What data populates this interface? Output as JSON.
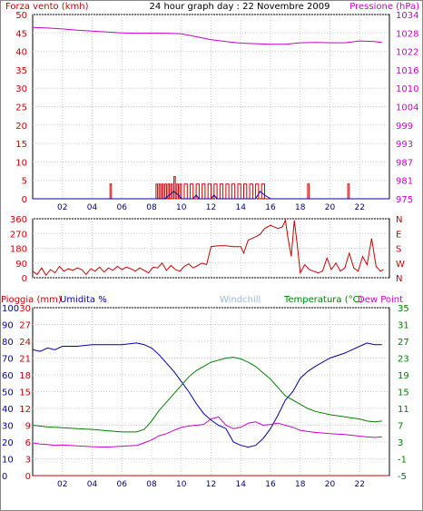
{
  "header": {
    "title": "24 hour graph day : 22 Novembre 2009",
    "left_label": "Forza vento (kmh)",
    "right_label": "Pressione (hPa)"
  },
  "colors": {
    "red": "#cc0000",
    "magenta": "#cc00cc",
    "blue": "#0000aa",
    "green": "#008000",
    "lightblue": "#9ab9d9",
    "navy": "#000080"
  },
  "chart_data": [
    {
      "type": "line",
      "name": "wind-pressure",
      "ylabel_left": "Forza vento (kmh)",
      "ylabel_right": "Pressione (hPa)",
      "yticks_left": [
        "0",
        "5",
        "10",
        "15",
        "20",
        "25",
        "30",
        "35",
        "40",
        "45",
        "50"
      ],
      "yticks_right": [
        "975",
        "981",
        "987",
        "993",
        "999",
        "1004",
        "1010",
        "1016",
        "1022",
        "1028",
        "1034"
      ],
      "ylim_left": [
        0,
        50
      ],
      "xlim": [
        0,
        24
      ],
      "xticks": [
        "02",
        "04",
        "06",
        "08",
        "10",
        "12",
        "14",
        "16",
        "18",
        "20",
        "22"
      ],
      "series": [
        {
          "role": "pressure",
          "axis": "right",
          "x": [
            0,
            1,
            2,
            3,
            4,
            5,
            6,
            7,
            8,
            9,
            10,
            11,
            12,
            13,
            14,
            15,
            16,
            17,
            18,
            19,
            20,
            21,
            22,
            23,
            23.5
          ],
          "y": [
            1029.8,
            1029.6,
            1029.3,
            1028.9,
            1028.6,
            1028.3,
            1028.0,
            1027.9,
            1027.9,
            1027.9,
            1027.7,
            1026.8,
            1025.8,
            1025.2,
            1024.7,
            1024.5,
            1024.3,
            1024.3,
            1024.8,
            1024.9,
            1024.8,
            1024.8,
            1025.4,
            1025.2,
            1024.9
          ]
        },
        {
          "role": "wind-max",
          "axis": "left",
          "x": [
            5.2,
            5.3,
            8.3,
            8.4,
            8.5,
            8.6,
            8.7,
            8.8,
            8.9,
            9.0,
            9.1,
            9.2,
            9.3,
            9.4,
            9.5,
            9.6,
            9.7,
            9.8,
            9.9,
            10.0,
            10.2,
            10.4,
            10.6,
            10.8,
            11.0,
            11.2,
            11.4,
            11.6,
            11.8,
            12.0,
            12.2,
            12.4,
            12.6,
            12.8,
            13.0,
            13.2,
            13.4,
            13.6,
            13.8,
            14.0,
            14.2,
            14.4,
            14.6,
            14.8,
            15.0,
            15.2,
            15.4,
            15.6,
            18.5,
            18.6,
            21.2,
            21.3
          ],
          "y": [
            4,
            0,
            4,
            0,
            4,
            0,
            4,
            0,
            4,
            0,
            4,
            0,
            4,
            0,
            6,
            0,
            4,
            0,
            4,
            0,
            4,
            0,
            4,
            0,
            4,
            0,
            4,
            0,
            4,
            0,
            4,
            0,
            4,
            0,
            4,
            0,
            4,
            0,
            4,
            0,
            4,
            0,
            4,
            0,
            4,
            0,
            4,
            0,
            4,
            0,
            4,
            0
          ]
        },
        {
          "role": "wind-avg",
          "axis": "left",
          "x": [
            0,
            8.9,
            9.2,
            9.5,
            9.8,
            10.0,
            10.8,
            11.0,
            11.2,
            12.0,
            12.2,
            12.4,
            15.0,
            15.3,
            15.6,
            16.0,
            24
          ],
          "y": [
            0,
            0,
            1,
            2,
            1,
            0,
            0,
            1,
            0,
            0,
            1,
            0,
            0,
            2,
            1,
            0,
            0
          ]
        }
      ]
    },
    {
      "type": "line",
      "name": "wind-direction",
      "ylim": [
        0,
        360
      ],
      "yticks_left": [
        "0",
        "90",
        "180",
        "270",
        "360"
      ],
      "yticks_right": [
        "N",
        "W",
        "S",
        "E",
        "N"
      ],
      "xlim": [
        0,
        24
      ],
      "series": [
        {
          "role": "direction",
          "x": [
            0,
            0.3,
            0.6,
            0.9,
            1.2,
            1.5,
            1.8,
            2.1,
            2.4,
            2.7,
            3.0,
            3.3,
            3.6,
            3.9,
            4.2,
            4.5,
            4.8,
            5.1,
            5.4,
            5.7,
            6.0,
            6.3,
            6.6,
            6.9,
            7.2,
            7.5,
            7.8,
            8.1,
            8.4,
            8.7,
            9.0,
            9.3,
            9.6,
            9.9,
            10.2,
            10.5,
            10.8,
            11.1,
            11.4,
            11.7,
            12.0,
            12.5,
            13.0,
            13.5,
            14.0,
            14.2,
            14.5,
            15.0,
            15.3,
            15.6,
            16.0,
            16.5,
            16.8,
            17.0,
            17.2,
            17.4,
            17.6,
            17.8,
            18.0,
            18.3,
            18.6,
            18.9,
            19.2,
            19.5,
            19.8,
            20.1,
            20.4,
            20.7,
            21.0,
            21.3,
            21.6,
            21.9,
            22.2,
            22.5,
            22.8,
            23.1,
            23.4,
            23.6
          ],
          "y": [
            40,
            20,
            60,
            15,
            50,
            30,
            70,
            40,
            55,
            45,
            60,
            50,
            20,
            55,
            40,
            65,
            35,
            60,
            45,
            70,
            50,
            65,
            55,
            40,
            60,
            45,
            30,
            65,
            60,
            90,
            45,
            75,
            50,
            40,
            70,
            85,
            60,
            75,
            90,
            80,
            190,
            195,
            195,
            190,
            190,
            150,
            230,
            250,
            265,
            300,
            320,
            300,
            310,
            350,
            230,
            130,
            350,
            200,
            30,
            80,
            50,
            40,
            30,
            40,
            120,
            50,
            90,
            40,
            60,
            150,
            60,
            40,
            130,
            80,
            240,
            70,
            40,
            50
          ]
        }
      ]
    },
    {
      "type": "line",
      "name": "rain-humidity-temperature",
      "labels": {
        "rain": "Pioggia (mm)",
        "humidity": "Umidita %",
        "windchill": "Windchill",
        "temperature": "Temperatura (°C)",
        "dewpoint": "Dew Point"
      },
      "yticks_left_rain": [
        "0",
        "3",
        "6",
        "9",
        "12",
        "15",
        "18",
        "21",
        "24",
        "27",
        "30"
      ],
      "yticks_left_humidity": [
        "0",
        "10",
        "20",
        "30",
        "40",
        "50",
        "60",
        "70",
        "80",
        "90",
        "100"
      ],
      "yticks_right": [
        "-5",
        "-1",
        "3",
        "7",
        "11",
        "15",
        "19",
        "23",
        "27",
        "31",
        "35"
      ],
      "ylim_right": [
        -5,
        35
      ],
      "xlim": [
        0,
        24
      ],
      "series": [
        {
          "role": "humidity",
          "x": [
            0,
            0.5,
            1,
            1.5,
            2,
            3,
            4,
            5,
            6,
            7,
            7.5,
            8,
            8.5,
            9,
            9.5,
            10,
            10.5,
            11,
            11.5,
            12,
            12.5,
            13,
            13.5,
            14,
            14.5,
            15,
            15.5,
            16,
            16.5,
            17,
            17.5,
            18,
            18.5,
            19,
            20,
            21,
            22,
            22.5,
            23,
            23.5
          ],
          "y": [
            75,
            74,
            76,
            75,
            77,
            77,
            78,
            78,
            78,
            79,
            78,
            76,
            72,
            67,
            62,
            56,
            50,
            43,
            37,
            33,
            30,
            28,
            20,
            18,
            17,
            18,
            22,
            28,
            36,
            45,
            50,
            58,
            62,
            65,
            70,
            73,
            77,
            79,
            78,
            78
          ]
        },
        {
          "role": "temperature",
          "x": [
            0,
            0.5,
            1,
            1.5,
            2,
            3,
            4,
            5,
            6,
            7,
            7.5,
            8,
            8.5,
            9,
            9.5,
            10,
            10.5,
            11,
            11.5,
            12,
            12.5,
            13,
            13.5,
            14,
            14.5,
            15,
            15.5,
            16,
            16.5,
            17,
            17.5,
            18,
            18.5,
            19,
            20,
            21,
            22,
            22.5,
            23,
            23.5
          ],
          "y": [
            7.0,
            6.8,
            6.6,
            6.5,
            6.4,
            6.2,
            6.0,
            5.7,
            5.4,
            5.4,
            6.0,
            8.0,
            10.5,
            12.5,
            14.5,
            16.5,
            18.5,
            20.0,
            21.0,
            22.0,
            22.5,
            23.0,
            23.2,
            22.8,
            22.0,
            21.0,
            19.5,
            18.0,
            16.0,
            14.0,
            13.0,
            12.0,
            11.0,
            10.3,
            9.5,
            9.0,
            8.5,
            8.0,
            7.8,
            8.0
          ]
        },
        {
          "role": "dewpoint",
          "x": [
            0,
            0.5,
            1,
            1.5,
            2,
            3,
            4,
            5,
            6,
            7,
            7.5,
            8,
            8.5,
            9,
            9.5,
            10,
            10.5,
            11,
            11.5,
            12,
            12.5,
            13,
            13.5,
            14,
            14.5,
            15,
            15.5,
            16,
            16.5,
            17,
            17.5,
            18,
            18.5,
            19,
            20,
            21,
            22,
            22.5,
            23,
            23.5
          ],
          "y": [
            2.8,
            2.5,
            2.4,
            2.2,
            2.3,
            2.1,
            1.9,
            1.8,
            2.0,
            2.2,
            2.8,
            3.5,
            4.5,
            5.0,
            5.8,
            6.5,
            6.8,
            7.0,
            7.2,
            8.5,
            9.0,
            7.0,
            6.2,
            6.5,
            7.5,
            7.8,
            7.0,
            7.2,
            7.5,
            7.0,
            6.5,
            5.8,
            5.5,
            5.3,
            5.0,
            4.8,
            4.4,
            4.2,
            4.1,
            4.2
          ]
        },
        {
          "role": "windchill",
          "x": [
            0,
            24
          ],
          "y": [
            6.5,
            6.5
          ]
        },
        {
          "role": "rain",
          "x": [
            0,
            24
          ],
          "y": [
            0,
            0
          ]
        }
      ]
    }
  ]
}
